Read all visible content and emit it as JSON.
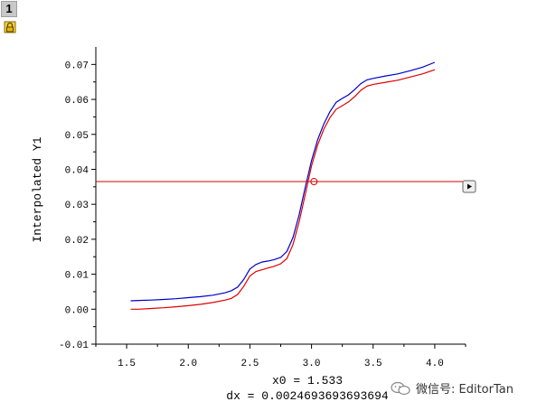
{
  "layer": {
    "badge": "1"
  },
  "readout": {
    "x0": "x0 = 1.533",
    "dx": "dx = 0.0024693693693694"
  },
  "watermark": {
    "text": "微信号: EditorTan"
  },
  "colors": {
    "series_blue": "#0000cc",
    "series_red": "#e00000",
    "cursor": "#d00000"
  },
  "chart_data": {
    "type": "line",
    "title": "",
    "xlabel": "",
    "ylabel": "Interpolated Y1",
    "xlim": [
      1.25,
      4.25
    ],
    "ylim": [
      -0.01,
      0.075
    ],
    "xticks": [
      "1.5",
      "2.0",
      "2.5",
      "3.0",
      "3.5",
      "4.0"
    ],
    "yticks": [
      "-0.01",
      "0.00",
      "0.01",
      "0.02",
      "0.03",
      "0.04",
      "0.05",
      "0.06",
      "0.07"
    ],
    "grid": false,
    "legend": "none",
    "cursor": {
      "y": 0.0365,
      "x": 3.02
    },
    "series": [
      {
        "color": "#0000cc",
        "x": [
          1.533,
          1.6,
          1.7,
          1.8,
          1.9,
          2.0,
          2.1,
          2.2,
          2.3,
          2.35,
          2.4,
          2.45,
          2.5,
          2.55,
          2.6,
          2.65,
          2.7,
          2.75,
          2.8,
          2.85,
          2.9,
          2.95,
          3.0,
          3.05,
          3.1,
          3.15,
          3.2,
          3.25,
          3.3,
          3.35,
          3.4,
          3.45,
          3.5,
          3.6,
          3.7,
          3.8,
          3.9,
          4.0
        ],
        "y": [
          0.0024,
          0.0025,
          0.0026,
          0.0028,
          0.003,
          0.0033,
          0.0036,
          0.004,
          0.0047,
          0.0053,
          0.0063,
          0.0085,
          0.0115,
          0.0128,
          0.0135,
          0.0138,
          0.0142,
          0.0148,
          0.0165,
          0.0205,
          0.027,
          0.035,
          0.0425,
          0.0485,
          0.053,
          0.0565,
          0.0592,
          0.0603,
          0.0613,
          0.0628,
          0.0645,
          0.0656,
          0.066,
          0.0667,
          0.0673,
          0.0682,
          0.0692,
          0.0706
        ]
      },
      {
        "color": "#e00000",
        "x": [
          1.533,
          1.6,
          1.7,
          1.8,
          1.9,
          2.0,
          2.1,
          2.2,
          2.3,
          2.35,
          2.4,
          2.45,
          2.5,
          2.55,
          2.6,
          2.65,
          2.7,
          2.75,
          2.8,
          2.85,
          2.9,
          2.95,
          3.0,
          3.05,
          3.1,
          3.15,
          3.2,
          3.25,
          3.3,
          3.35,
          3.4,
          3.45,
          3.5,
          3.6,
          3.7,
          3.8,
          3.9,
          4.0
        ],
        "y": [
          0.0,
          0.0,
          0.0002,
          0.0004,
          0.0007,
          0.001,
          0.0014,
          0.0019,
          0.0026,
          0.0031,
          0.0042,
          0.0065,
          0.0095,
          0.0108,
          0.0113,
          0.0118,
          0.0123,
          0.013,
          0.0145,
          0.0185,
          0.025,
          0.033,
          0.041,
          0.047,
          0.0515,
          0.0548,
          0.0572,
          0.0582,
          0.0593,
          0.0608,
          0.0626,
          0.0638,
          0.0643,
          0.0649,
          0.0655,
          0.0664,
          0.0673,
          0.0685
        ]
      }
    ]
  }
}
